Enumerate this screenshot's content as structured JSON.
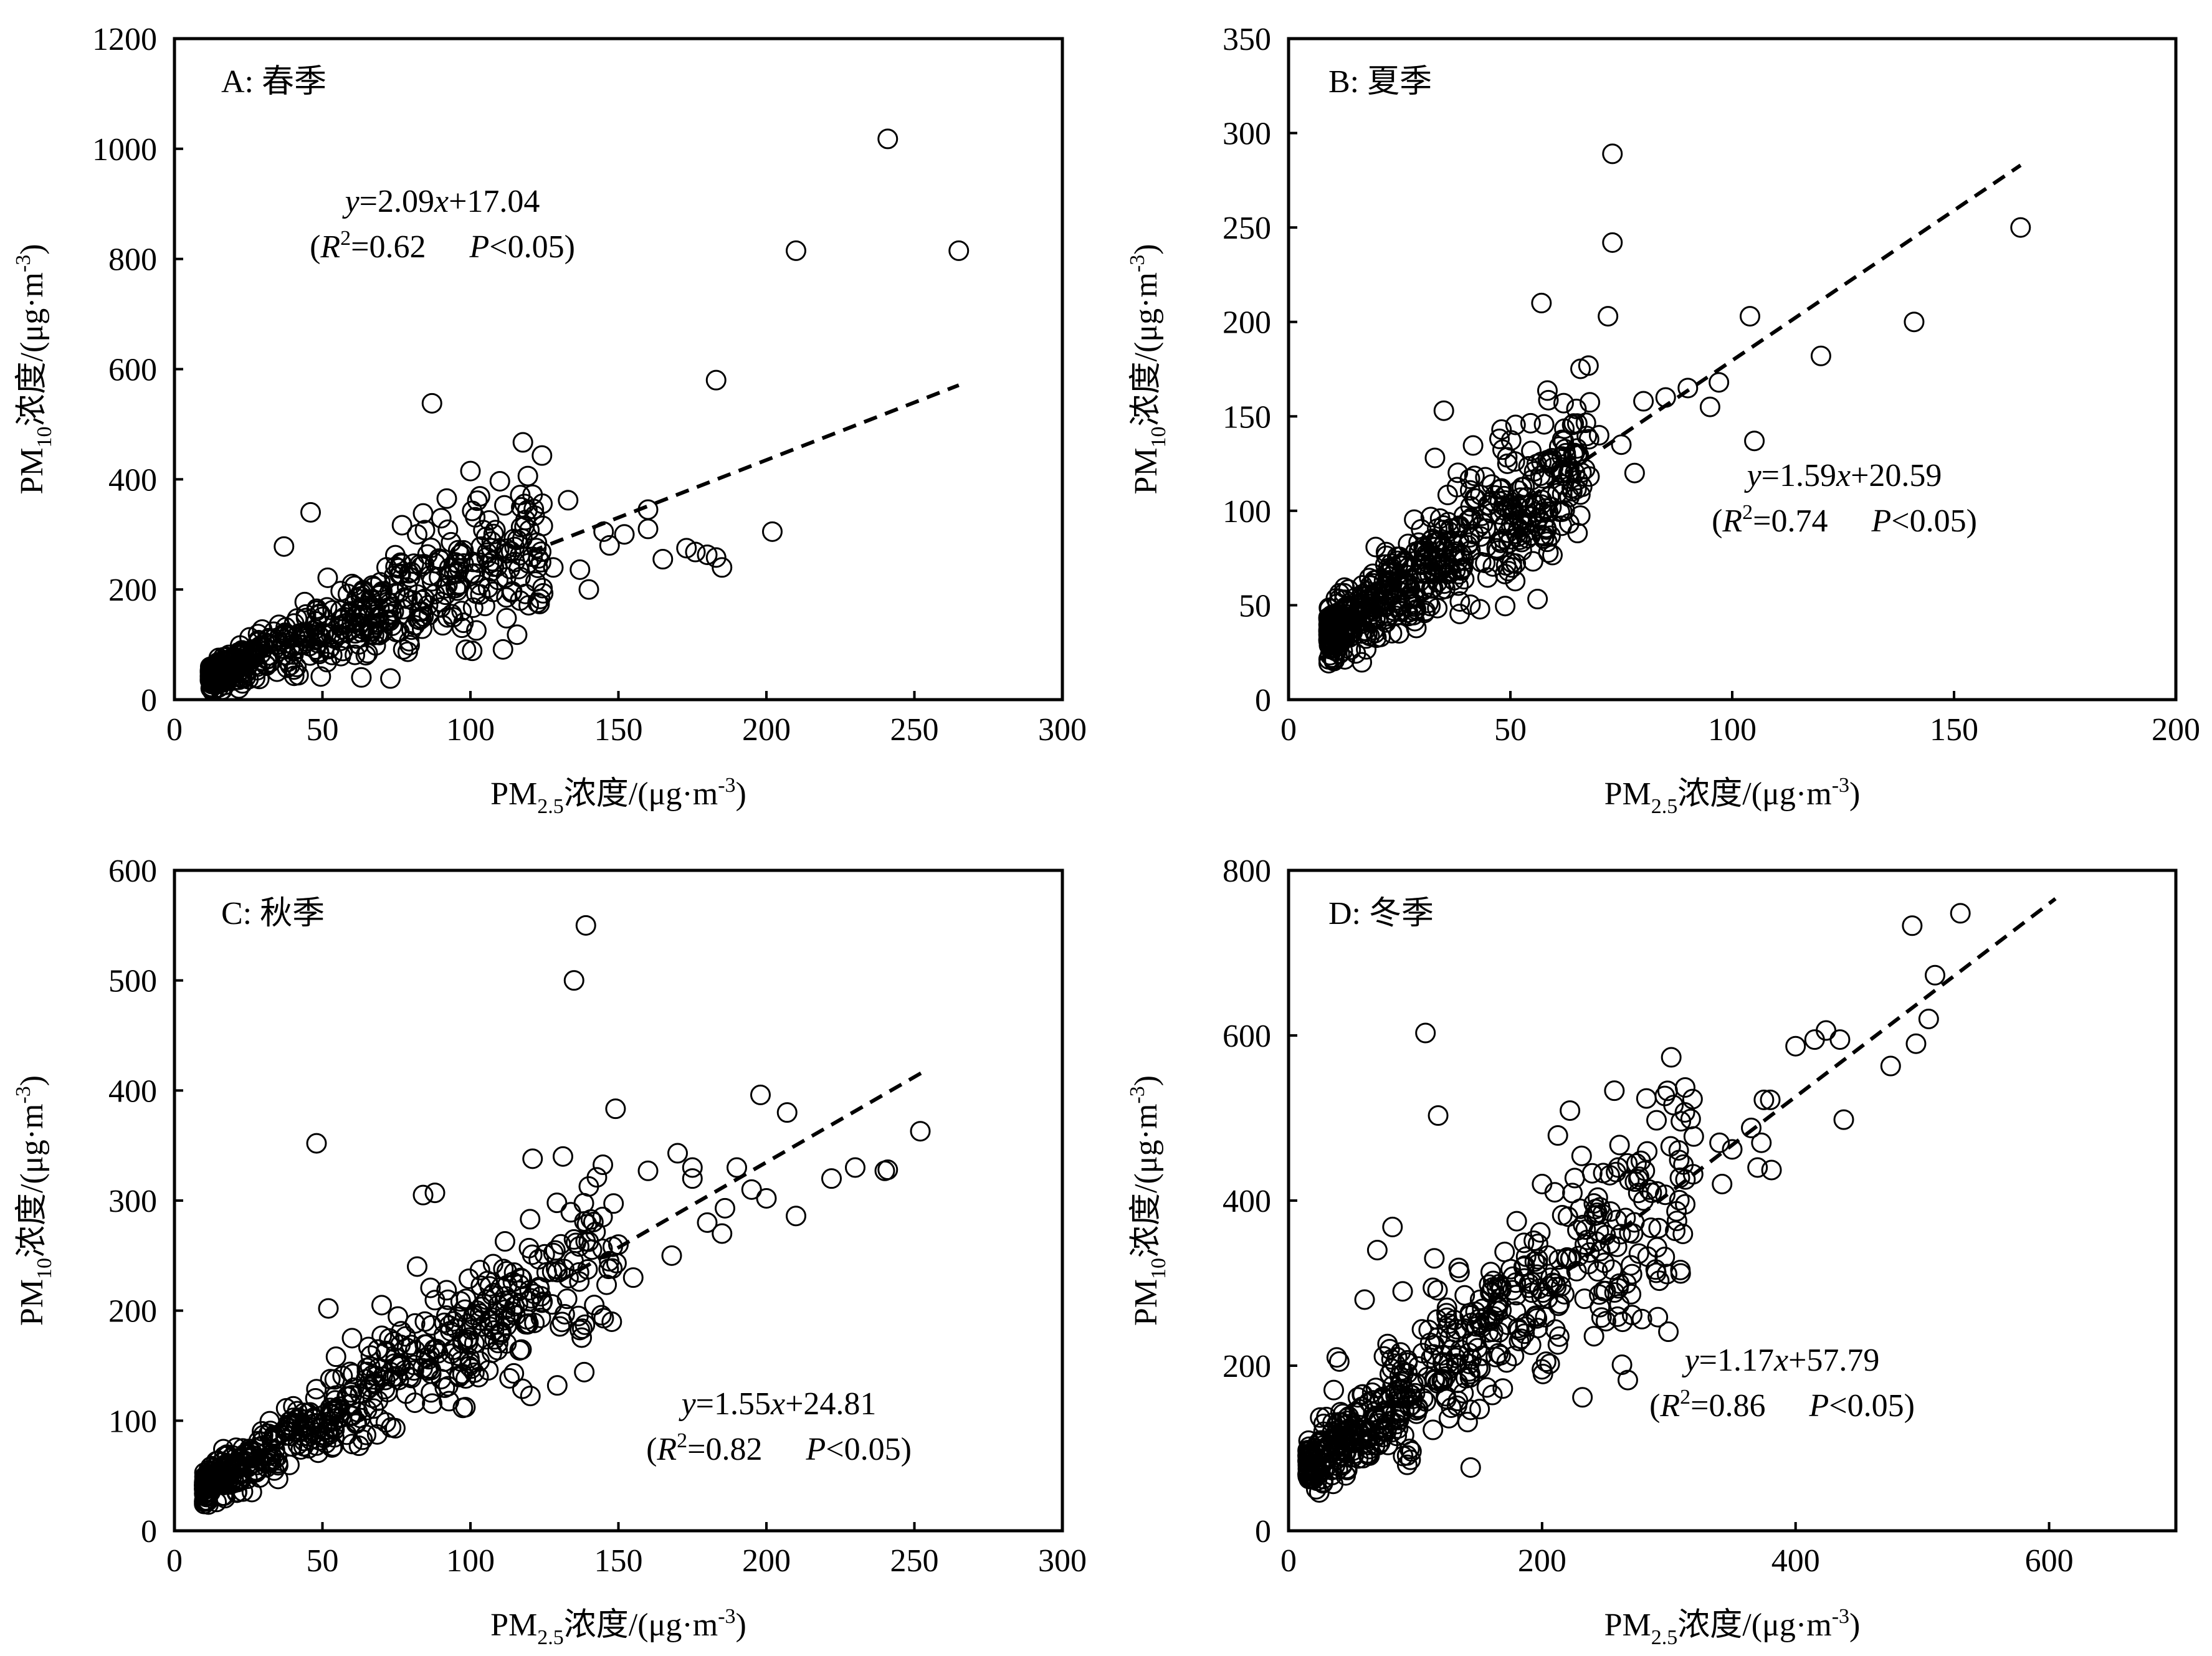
{
  "chart_data": [
    {
      "type": "scatter",
      "panel_label": "A: 春季",
      "xlabel": {
        "main": "PM",
        "sub": "2.5",
        "rest": "浓度/(μg·m",
        "sup": "-3",
        "end": ")"
      },
      "ylabel": {
        "main": "PM",
        "sub": "10",
        "rest": "浓度/(μg·m",
        "sup": "-3",
        "end": ")"
      },
      "xlim": [
        0,
        300
      ],
      "ylim": [
        0,
        1200
      ],
      "xticks": [
        0,
        50,
        100,
        150,
        200,
        250,
        300
      ],
      "yticks": [
        0,
        200,
        400,
        600,
        800,
        1000,
        1200
      ],
      "equation": {
        "y": "y",
        "eq": "=2.09",
        "x": "x",
        "rest": "+17.04"
      },
      "stats": {
        "open": "(",
        "r": "R",
        "sup": "2",
        "r_val": "=0.62",
        "p": "P",
        "p_val": "<0.05)"
      },
      "fit": {
        "slope": 2.09,
        "intercept": 17.04,
        "x_range": [
          120,
          265
        ]
      },
      "cluster": {
        "x_range": [
          12,
          125
        ],
        "slope": 2.09,
        "intercept": 17.04,
        "noise": 0.28,
        "count": 520
      },
      "points": [
        [
          241,
          1018
        ],
        [
          210,
          815
        ],
        [
          265,
          815
        ],
        [
          87,
          538
        ],
        [
          183,
          580
        ],
        [
          160,
          345
        ],
        [
          202,
          305
        ],
        [
          100,
          415
        ],
        [
          121,
          372
        ],
        [
          133,
          362
        ],
        [
          145,
          305
        ],
        [
          165,
          255
        ],
        [
          173,
          275
        ],
        [
          180,
          263
        ],
        [
          185,
          240
        ],
        [
          140,
          200
        ],
        [
          128,
          240
        ],
        [
          107,
          275
        ],
        [
          115,
          250
        ],
        [
          92,
          365
        ],
        [
          82,
          300
        ],
        [
          84,
          338
        ],
        [
          46,
          340
        ],
        [
          37,
          278
        ],
        [
          60,
          210
        ],
        [
          160,
          310
        ],
        [
          176,
          268
        ],
        [
          183,
          258
        ],
        [
          137,
          236
        ],
        [
          147,
          280
        ],
        [
          152,
          300
        ]
      ]
    },
    {
      "type": "scatter",
      "panel_label": "B: 夏季",
      "xlabel": {
        "main": "PM",
        "sub": "2.5",
        "rest": "浓度/(μg·m",
        "sup": "-3",
        "end": ")"
      },
      "ylabel": {
        "main": "PM",
        "sub": "10",
        "rest": "浓度/(μg·m",
        "sup": "-3",
        "end": ")"
      },
      "xlim": [
        0,
        200
      ],
      "ylim": [
        0,
        350
      ],
      "xticks": [
        0,
        50,
        100,
        150,
        200
      ],
      "yticks": [
        0,
        50,
        100,
        150,
        200,
        250,
        300,
        350
      ],
      "equation": {
        "y": "y",
        "eq": "=1.59",
        "x": "x",
        "rest": "+20.59"
      },
      "stats": {
        "open": "(",
        "r": "R",
        "sup": "2",
        "r_val": "=0.74",
        "p": "P",
        "p_val": "<0.05)"
      },
      "fit": {
        "slope": 1.59,
        "intercept": 20.59,
        "x_range": [
          50,
          165
        ]
      },
      "cluster": {
        "x_range": [
          9,
          68
        ],
        "slope": 1.59,
        "intercept": 20.59,
        "noise": 0.2,
        "count": 560
      },
      "points": [
        [
          73,
          289
        ],
        [
          73,
          242
        ],
        [
          72,
          203
        ],
        [
          57,
          210
        ],
        [
          104,
          203
        ],
        [
          120,
          182
        ],
        [
          141,
          200
        ],
        [
          165,
          250
        ],
        [
          105,
          137
        ],
        [
          97,
          168
        ],
        [
          95,
          155
        ],
        [
          90,
          165
        ],
        [
          85,
          160
        ],
        [
          80,
          158
        ],
        [
          35,
          153
        ],
        [
          62,
          157
        ],
        [
          48,
          143
        ],
        [
          33,
          128
        ],
        [
          75,
          135
        ],
        [
          70,
          140
        ],
        [
          65,
          133
        ],
        [
          78,
          120
        ]
      ]
    },
    {
      "type": "scatter",
      "panel_label": "C: 秋季",
      "xlabel": {
        "main": "PM",
        "sub": "2.5",
        "rest": "浓度/(μg·m",
        "sup": "-3",
        "end": ")"
      },
      "ylabel": {
        "main": "PM",
        "sub": "10",
        "rest": "浓度/(μg·m",
        "sup": "-3",
        "end": ")"
      },
      "xlim": [
        0,
        300
      ],
      "ylim": [
        0,
        600
      ],
      "xticks": [
        0,
        50,
        100,
        150,
        200,
        250,
        300
      ],
      "yticks": [
        0,
        100,
        200,
        300,
        400,
        500,
        600
      ],
      "equation": {
        "y": "y",
        "eq": "=1.55",
        "x": "x",
        "rest": "+24.81"
      },
      "stats": {
        "open": "(",
        "r": "R",
        "sup": "2",
        "r_val": "=0.82",
        "p": "P",
        "p_val": "<0.05)"
      },
      "fit": {
        "slope": 1.55,
        "intercept": 24.81,
        "x_range": [
          130,
          253
        ]
      },
      "cluster": {
        "x_range": [
          10,
          150
        ],
        "slope": 1.55,
        "intercept": 24.81,
        "noise": 0.18,
        "count": 560
      },
      "points": [
        [
          139,
          550
        ],
        [
          135,
          500
        ],
        [
          48,
          352
        ],
        [
          88,
          307
        ],
        [
          84,
          305
        ],
        [
          121,
          338
        ],
        [
          198,
          396
        ],
        [
          207,
          380
        ],
        [
          252,
          363
        ],
        [
          241,
          328
        ],
        [
          240,
          327
        ],
        [
          222,
          320
        ],
        [
          210,
          286
        ],
        [
          200,
          302
        ],
        [
          190,
          330
        ],
        [
          170,
          343
        ],
        [
          175,
          320
        ],
        [
          160,
          327
        ],
        [
          180,
          280
        ],
        [
          186,
          293
        ],
        [
          168,
          250
        ],
        [
          150,
          260
        ],
        [
          155,
          230
        ],
        [
          195,
          310
        ],
        [
          230,
          330
        ],
        [
          175,
          330
        ],
        [
          185,
          270
        ],
        [
          52,
          202
        ],
        [
          70,
          205
        ],
        [
          82,
          240
        ],
        [
          60,
          175
        ]
      ]
    },
    {
      "type": "scatter",
      "panel_label": "D: 冬季",
      "xlabel": {
        "main": "PM",
        "sub": "2.5",
        "rest": "浓度/(μg·m",
        "sup": "-3",
        "end": ")"
      },
      "ylabel": {
        "main": "PM",
        "sub": "10",
        "rest": "浓度/(μg·m",
        "sup": "-3",
        "end": ")"
      },
      "xlim": [
        0,
        700
      ],
      "ylim": [
        0,
        800
      ],
      "xticks": [
        0,
        200,
        400,
        600
      ],
      "yticks": [
        0,
        200,
        400,
        600,
        800
      ],
      "equation": {
        "y": "y",
        "eq": "=1.17",
        "x": "x",
        "rest": "+57.79"
      },
      "stats": {
        "open": "(",
        "r": "R",
        "sup": "2",
        "r_val": "=0.86",
        "p": "P",
        "p_val": "<0.05)"
      },
      "fit": {
        "slope": 1.17,
        "intercept": 57.79,
        "x_range": [
          220,
          605
        ]
      },
      "cluster": {
        "x_range": [
          15,
          320
        ],
        "slope": 1.17,
        "intercept": 57.79,
        "noise": 0.2,
        "count": 560
      },
      "points": [
        [
          530,
          748
        ],
        [
          492,
          733
        ],
        [
          510,
          673
        ],
        [
          505,
          620
        ],
        [
          424,
          606
        ],
        [
          415,
          595
        ],
        [
          400,
          587
        ],
        [
          435,
          595
        ],
        [
          495,
          590
        ],
        [
          475,
          563
        ],
        [
          438,
          498
        ],
        [
          375,
          522
        ],
        [
          380,
          522
        ],
        [
          365,
          488
        ],
        [
          373,
          470
        ],
        [
          381,
          437
        ],
        [
          370,
          440
        ],
        [
          350,
          462
        ],
        [
          342,
          420
        ],
        [
          340,
          470
        ],
        [
          108,
          603
        ],
        [
          118,
          503
        ],
        [
          222,
          509
        ],
        [
          82,
          368
        ],
        [
          70,
          340
        ],
        [
          60,
          280
        ],
        [
          90,
          290
        ],
        [
          40,
          205
        ],
        [
          38,
          210
        ],
        [
          115,
          330
        ],
        [
          160,
          290
        ],
        [
          180,
          375
        ],
        [
          200,
          420
        ],
        [
          210,
          410
        ],
        [
          230,
          390
        ],
        [
          260,
          440
        ],
        [
          280,
          400
        ]
      ]
    }
  ]
}
